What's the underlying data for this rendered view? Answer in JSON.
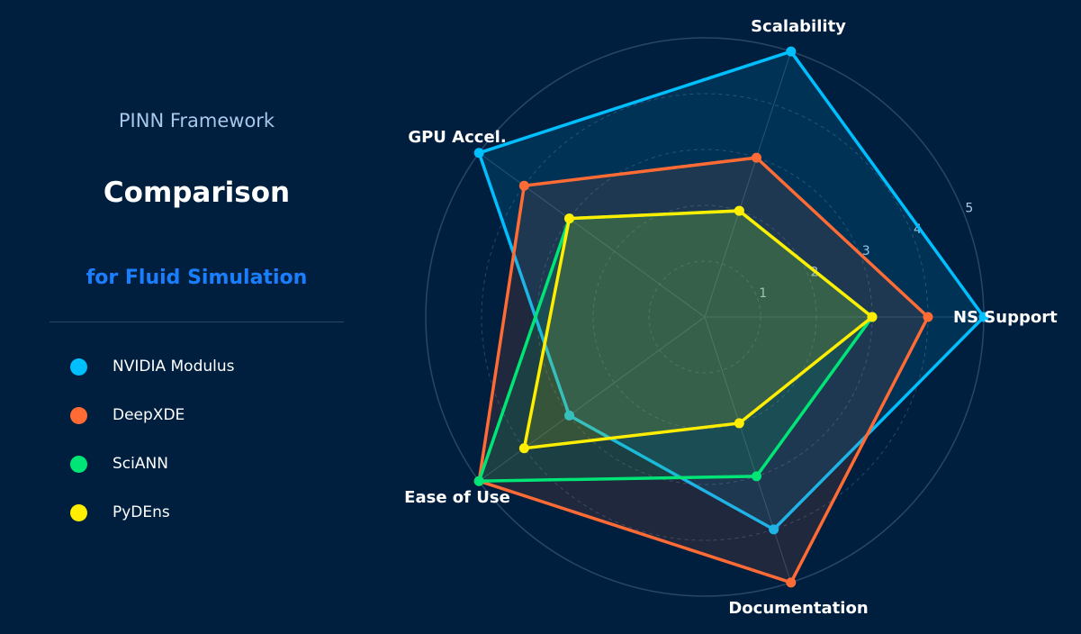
{
  "sidebar": {
    "title_line1": "PINN Framework",
    "title_line2": "Comparison",
    "title_line3": "for Fluid Simulation"
  },
  "chart_data": {
    "type": "radar",
    "categories": [
      "NS Support",
      "Scalability",
      "GPU Accel.",
      "Ease of Use",
      "Documentation"
    ],
    "radial_ticks": [
      "1",
      "2",
      "3",
      "4",
      "5"
    ],
    "rlim": [
      0,
      5
    ],
    "grid": true,
    "legend_position": "left",
    "series": [
      {
        "name": "NVIDIA Modulus",
        "color": "#00bfff",
        "values": [
          5,
          5,
          5,
          3,
          4
        ]
      },
      {
        "name": "DeepXDE",
        "color": "#ff6b35",
        "values": [
          4,
          3,
          4,
          5,
          5
        ]
      },
      {
        "name": "SciANN",
        "color": "#00e676",
        "values": [
          3,
          2,
          3,
          5,
          3
        ]
      },
      {
        "name": "PyDEns",
        "color": "#ffee00",
        "values": [
          3,
          2,
          3,
          4,
          2
        ]
      }
    ]
  },
  "colors": {
    "background": "#001f3f",
    "grid": "#2a4565"
  }
}
